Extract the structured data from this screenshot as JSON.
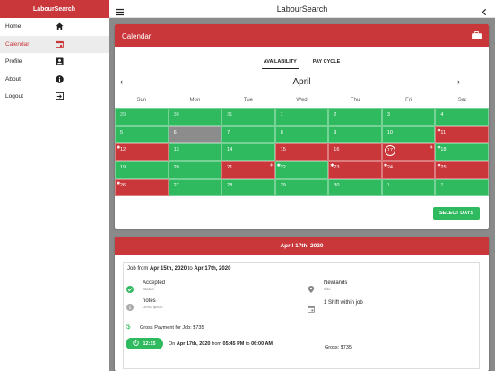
{
  "app": {
    "title": "LabourSearch",
    "sidebar_title": "LabourSearch"
  },
  "sidebar": {
    "items": [
      {
        "label": "Home",
        "icon": "home-icon"
      },
      {
        "label": "Calendar",
        "icon": "calendar-icon",
        "active": true
      },
      {
        "label": "Profile",
        "icon": "profile-icon"
      },
      {
        "label": "About",
        "icon": "info-icon"
      },
      {
        "label": "Logout",
        "icon": "logout-icon"
      }
    ]
  },
  "calendar": {
    "header": "Calendar",
    "tabs": [
      "AVAILABILITY",
      "PAY CYCLE"
    ],
    "month": "April",
    "weekdays": [
      "Sun",
      "Mon",
      "Tue",
      "Wed",
      "Thu",
      "Fri",
      "Sat"
    ],
    "days": [
      {
        "d": "29",
        "s": "g",
        "dim": true
      },
      {
        "d": "30",
        "s": "g",
        "dim": true
      },
      {
        "d": "31",
        "s": "g",
        "dim": true
      },
      {
        "d": "1",
        "s": "g"
      },
      {
        "d": "2",
        "s": "g"
      },
      {
        "d": "3",
        "s": "g"
      },
      {
        "d": "4",
        "s": "g"
      },
      {
        "d": "5",
        "s": "g"
      },
      {
        "d": "6",
        "s": "gray"
      },
      {
        "d": "7",
        "s": "g"
      },
      {
        "d": "8",
        "s": "g"
      },
      {
        "d": "9",
        "s": "g"
      },
      {
        "d": "10",
        "s": "g"
      },
      {
        "d": "11",
        "s": "r",
        "star": true
      },
      {
        "d": "12",
        "s": "r",
        "star": true
      },
      {
        "d": "13",
        "s": "g"
      },
      {
        "d": "14",
        "s": "g"
      },
      {
        "d": "15",
        "s": "r"
      },
      {
        "d": "16",
        "s": "r"
      },
      {
        "d": "17",
        "s": "r",
        "circle": true,
        "pin": true
      },
      {
        "d": "18",
        "s": "g",
        "star": true
      },
      {
        "d": "19",
        "s": "g"
      },
      {
        "d": "20",
        "s": "g"
      },
      {
        "d": "21",
        "s": "r",
        "pin": true
      },
      {
        "d": "22",
        "s": "g",
        "star": true
      },
      {
        "d": "23",
        "s": "r",
        "star": true
      },
      {
        "d": "24",
        "s": "r",
        "star": true
      },
      {
        "d": "25",
        "s": "r",
        "star": true
      },
      {
        "d": "26",
        "s": "r",
        "star": true
      },
      {
        "d": "27",
        "s": "g"
      },
      {
        "d": "28",
        "s": "g"
      },
      {
        "d": "29",
        "s": "g"
      },
      {
        "d": "30",
        "s": "g"
      },
      {
        "d": "1",
        "s": "g",
        "dim": true
      },
      {
        "d": "2",
        "s": "g",
        "dim": true
      }
    ],
    "select_days_label": "SELECT DAYS"
  },
  "job": {
    "date_header": "April 17th, 2020",
    "from_prefix": "Job from ",
    "from_date": "Apr 15th, 2020",
    "to_word": " to ",
    "to_date": "Apr 17th, 2020",
    "status_value": "Accepted",
    "status_label": "Status",
    "site_value": "Newlands",
    "site_label": "Site",
    "notes_value": "notes",
    "notes_label": "Description",
    "shift_count": "1 Shift within job",
    "gross_payment_text": "Gross Payment for Job: $735",
    "timer_value": "12:15",
    "shift_prefix": "On ",
    "shift_date": "Apr 17th, 2020",
    "shift_from_word": " from ",
    "shift_start": "05:45 PM",
    "shift_to_word": " to ",
    "shift_end": "06:00 AM",
    "gross_text": "Gross: $735"
  },
  "colors": {
    "brand_red": "#c9373a",
    "available_green": "#2fba5f",
    "unavailable_gray": "#8c8c8c"
  }
}
